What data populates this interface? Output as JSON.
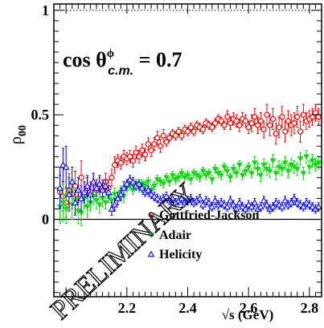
{
  "chart_data": {
    "type": "scatter",
    "title": "",
    "annotation": {
      "prefix": "cos θ",
      "superscript": "ϕ",
      "subscript": "c.m.",
      "suffix": " = 0.7"
    },
    "xlabel": "√s (GeV)",
    "ylabel": {
      "main": "ρ",
      "sub": "00"
    },
    "xlim": [
      1.96,
      2.84
    ],
    "ylim": [
      -0.37,
      1.03
    ],
    "x_ticks": [
      {
        "v": 2.2,
        "label": "2.2"
      },
      {
        "v": 2.4,
        "label": "2.4"
      },
      {
        "v": 2.6,
        "label": "2.6"
      },
      {
        "v": 2.8,
        "label": "2.8"
      }
    ],
    "y_ticks": [
      {
        "v": 0,
        "label": "0"
      },
      {
        "v": 0.5,
        "label": "0.5"
      },
      {
        "v": 1,
        "label": "1"
      }
    ],
    "reference_lines": [
      {
        "y": 0,
        "style": "solid"
      },
      {
        "y": 1,
        "style": "dotted"
      }
    ],
    "watermark": "PRELIMINARY",
    "grid": false,
    "legend_position": "bottom-right",
    "series": [
      {
        "name": "Gottfried-Jackson",
        "marker": "open-circle",
        "color": "#ff0000",
        "x": [
          1.98,
          1.99,
          2.0,
          2.01,
          2.02,
          2.03,
          2.04,
          2.05,
          2.06,
          2.07,
          2.08,
          2.09,
          2.1,
          2.11,
          2.12,
          2.13,
          2.14,
          2.15,
          2.16,
          2.17,
          2.18,
          2.19,
          2.2,
          2.21,
          2.22,
          2.23,
          2.24,
          2.25,
          2.26,
          2.27,
          2.28,
          2.29,
          2.3,
          2.31,
          2.32,
          2.33,
          2.34,
          2.35,
          2.36,
          2.37,
          2.38,
          2.39,
          2.4,
          2.41,
          2.42,
          2.43,
          2.44,
          2.45,
          2.46,
          2.47,
          2.48,
          2.49,
          2.5,
          2.51,
          2.52,
          2.53,
          2.54,
          2.55,
          2.56,
          2.57,
          2.58,
          2.59,
          2.6,
          2.61,
          2.62,
          2.63,
          2.64,
          2.65,
          2.66,
          2.67,
          2.68,
          2.69,
          2.7,
          2.71,
          2.72,
          2.73,
          2.74,
          2.75,
          2.76,
          2.77,
          2.78,
          2.79,
          2.8,
          2.81,
          2.82,
          2.83
        ],
        "y": [
          0.13,
          0.11,
          0.08,
          0.14,
          0.12,
          0.16,
          0.1,
          0.2,
          0.12,
          0.15,
          0.13,
          0.17,
          0.14,
          0.16,
          0.15,
          0.18,
          0.15,
          0.2,
          0.26,
          0.28,
          0.27,
          0.3,
          0.29,
          0.3,
          0.28,
          0.32,
          0.3,
          0.33,
          0.31,
          0.36,
          0.33,
          0.36,
          0.39,
          0.35,
          0.4,
          0.37,
          0.39,
          0.41,
          0.4,
          0.42,
          0.4,
          0.43,
          0.42,
          0.44,
          0.42,
          0.45,
          0.44,
          0.43,
          0.46,
          0.45,
          0.44,
          0.46,
          0.48,
          0.47,
          0.45,
          0.49,
          0.46,
          0.48,
          0.47,
          0.45,
          0.48,
          0.47,
          0.44,
          0.46,
          0.49,
          0.45,
          0.47,
          0.43,
          0.5,
          0.45,
          0.48,
          0.41,
          0.44,
          0.49,
          0.42,
          0.47,
          0.45,
          0.46,
          0.49,
          0.42,
          0.5,
          0.47,
          0.48,
          0.49,
          0.51,
          0.49
        ],
        "err": [
          0.08,
          0.07,
          0.07,
          0.08,
          0.07,
          0.07,
          0.06,
          0.08,
          0.06,
          0.05,
          0.05,
          0.05,
          0.05,
          0.04,
          0.04,
          0.04,
          0.04,
          0.04,
          0.04,
          0.03,
          0.03,
          0.03,
          0.03,
          0.03,
          0.03,
          0.03,
          0.03,
          0.03,
          0.03,
          0.03,
          0.03,
          0.03,
          0.03,
          0.03,
          0.03,
          0.02,
          0.02,
          0.02,
          0.02,
          0.02,
          0.02,
          0.02,
          0.02,
          0.02,
          0.02,
          0.02,
          0.02,
          0.02,
          0.02,
          0.02,
          0.02,
          0.02,
          0.02,
          0.02,
          0.02,
          0.03,
          0.03,
          0.03,
          0.03,
          0.03,
          0.03,
          0.03,
          0.03,
          0.04,
          0.04,
          0.04,
          0.04,
          0.04,
          0.05,
          0.05,
          0.05,
          0.05,
          0.05,
          0.05,
          0.05,
          0.05,
          0.05,
          0.05,
          0.05,
          0.05,
          0.05,
          0.04,
          0.04,
          0.04,
          0.04,
          0.04
        ]
      },
      {
        "name": "Adair",
        "marker": "filled-triangle-down",
        "color": "#00dd00",
        "x": [
          1.98,
          1.99,
          2.0,
          2.01,
          2.02,
          2.03,
          2.04,
          2.05,
          2.06,
          2.07,
          2.08,
          2.09,
          2.1,
          2.11,
          2.12,
          2.13,
          2.14,
          2.15,
          2.16,
          2.17,
          2.18,
          2.19,
          2.2,
          2.21,
          2.22,
          2.23,
          2.24,
          2.25,
          2.26,
          2.27,
          2.28,
          2.29,
          2.3,
          2.31,
          2.32,
          2.33,
          2.34,
          2.35,
          2.36,
          2.37,
          2.38,
          2.39,
          2.4,
          2.41,
          2.42,
          2.43,
          2.44,
          2.45,
          2.46,
          2.47,
          2.48,
          2.49,
          2.5,
          2.51,
          2.52,
          2.53,
          2.54,
          2.55,
          2.56,
          2.57,
          2.58,
          2.59,
          2.6,
          2.61,
          2.62,
          2.63,
          2.64,
          2.65,
          2.66,
          2.67,
          2.68,
          2.69,
          2.7,
          2.71,
          2.72,
          2.73,
          2.74,
          2.75,
          2.76,
          2.77,
          2.78,
          2.79,
          2.8,
          2.81,
          2.82,
          2.83
        ],
        "y": [
          0.06,
          0.08,
          0.05,
          0.12,
          0.07,
          0.09,
          0.04,
          0.03,
          0.1,
          0.06,
          0.08,
          0.11,
          0.09,
          0.07,
          0.1,
          0.08,
          0.11,
          0.09,
          0.12,
          0.1,
          0.13,
          0.11,
          0.15,
          0.16,
          0.14,
          0.17,
          0.15,
          0.17,
          0.16,
          0.18,
          0.14,
          0.16,
          0.19,
          0.18,
          0.17,
          0.2,
          0.18,
          0.21,
          0.19,
          0.2,
          0.22,
          0.2,
          0.21,
          0.19,
          0.22,
          0.21,
          0.2,
          0.23,
          0.21,
          0.22,
          0.19,
          0.24,
          0.22,
          0.21,
          0.25,
          0.23,
          0.2,
          0.24,
          0.22,
          0.26,
          0.21,
          0.23,
          0.25,
          0.22,
          0.27,
          0.24,
          0.21,
          0.26,
          0.24,
          0.23,
          0.28,
          0.22,
          0.25,
          0.24,
          0.27,
          0.23,
          0.26,
          0.25,
          0.24,
          0.29,
          0.22,
          0.3,
          0.25,
          0.28,
          0.26,
          0.27
        ],
        "err": [
          0.08,
          0.09,
          0.07,
          0.08,
          0.07,
          0.06,
          0.06,
          0.06,
          0.05,
          0.05,
          0.04,
          0.04,
          0.04,
          0.04,
          0.04,
          0.03,
          0.03,
          0.03,
          0.03,
          0.03,
          0.03,
          0.03,
          0.02,
          0.02,
          0.02,
          0.02,
          0.02,
          0.02,
          0.02,
          0.02,
          0.02,
          0.02,
          0.02,
          0.02,
          0.02,
          0.02,
          0.02,
          0.02,
          0.02,
          0.02,
          0.02,
          0.02,
          0.02,
          0.02,
          0.02,
          0.02,
          0.02,
          0.02,
          0.02,
          0.02,
          0.02,
          0.02,
          0.02,
          0.02,
          0.02,
          0.02,
          0.02,
          0.02,
          0.02,
          0.02,
          0.02,
          0.02,
          0.02,
          0.02,
          0.03,
          0.03,
          0.03,
          0.03,
          0.03,
          0.03,
          0.03,
          0.03,
          0.03,
          0.03,
          0.03,
          0.03,
          0.03,
          0.03,
          0.03,
          0.03,
          0.03,
          0.03,
          0.03,
          0.03,
          0.03,
          0.03
        ]
      },
      {
        "name": "Helicity",
        "marker": "open-triangle-up",
        "color": "#0000ff",
        "x": [
          1.98,
          1.99,
          2.0,
          2.01,
          2.02,
          2.03,
          2.04,
          2.05,
          2.06,
          2.07,
          2.08,
          2.09,
          2.1,
          2.11,
          2.12,
          2.13,
          2.14,
          2.15,
          2.16,
          2.17,
          2.18,
          2.19,
          2.2,
          2.21,
          2.22,
          2.23,
          2.24,
          2.25,
          2.26,
          2.27,
          2.28,
          2.29,
          2.3,
          2.31,
          2.32,
          2.33,
          2.34,
          2.35,
          2.36,
          2.37,
          2.38,
          2.39,
          2.4,
          2.41,
          2.42,
          2.43,
          2.44,
          2.45,
          2.46,
          2.47,
          2.48,
          2.49,
          2.5,
          2.51,
          2.52,
          2.53,
          2.54,
          2.55,
          2.56,
          2.57,
          2.58,
          2.59,
          2.6,
          2.61,
          2.62,
          2.63,
          2.64,
          2.65,
          2.66,
          2.67,
          2.68,
          2.69,
          2.7,
          2.71,
          2.72,
          2.73,
          2.74,
          2.75,
          2.76,
          2.77,
          2.78,
          2.79,
          2.8,
          2.81,
          2.82,
          2.83
        ],
        "y": [
          0.15,
          0.26,
          0.25,
          0.12,
          0.18,
          0.08,
          0.14,
          0.1,
          0.13,
          0.16,
          0.12,
          0.18,
          0.15,
          0.17,
          0.14,
          0.16,
          0.13,
          0.05,
          0.07,
          0.1,
          0.12,
          0.15,
          0.17,
          0.19,
          0.18,
          0.16,
          0.17,
          0.15,
          0.13,
          0.14,
          0.12,
          0.11,
          0.1,
          0.09,
          0.1,
          0.11,
          0.09,
          0.1,
          0.08,
          0.09,
          0.1,
          0.08,
          0.09,
          0.1,
          0.08,
          0.09,
          0.1,
          0.07,
          0.09,
          0.08,
          0.06,
          0.09,
          0.07,
          0.08,
          0.07,
          0.06,
          0.09,
          0.07,
          0.05,
          0.08,
          0.06,
          0.05,
          0.07,
          0.06,
          0.08,
          0.05,
          0.06,
          0.09,
          0.07,
          0.05,
          0.06,
          0.08,
          0.07,
          0.06,
          0.09,
          0.07,
          0.08,
          0.1,
          0.08,
          0.07,
          0.06,
          0.08,
          0.07,
          0.06,
          0.05,
          0.06
        ],
        "err": [
          0.1,
          0.08,
          0.1,
          0.08,
          0.07,
          0.06,
          0.06,
          0.06,
          0.05,
          0.05,
          0.04,
          0.04,
          0.04,
          0.04,
          0.03,
          0.03,
          0.03,
          0.03,
          0.03,
          0.03,
          0.03,
          0.03,
          0.02,
          0.02,
          0.02,
          0.02,
          0.02,
          0.02,
          0.02,
          0.02,
          0.02,
          0.02,
          0.02,
          0.02,
          0.02,
          0.02,
          0.02,
          0.02,
          0.02,
          0.02,
          0.02,
          0.02,
          0.02,
          0.02,
          0.02,
          0.02,
          0.02,
          0.02,
          0.02,
          0.02,
          0.02,
          0.02,
          0.02,
          0.02,
          0.02,
          0.02,
          0.02,
          0.02,
          0.02,
          0.02,
          0.02,
          0.02,
          0.02,
          0.02,
          0.02,
          0.02,
          0.02,
          0.02,
          0.02,
          0.02,
          0.02,
          0.02,
          0.02,
          0.02,
          0.02,
          0.02,
          0.02,
          0.02,
          0.02,
          0.02,
          0.02,
          0.02,
          0.02,
          0.02,
          0.02,
          0.02
        ]
      }
    ]
  }
}
